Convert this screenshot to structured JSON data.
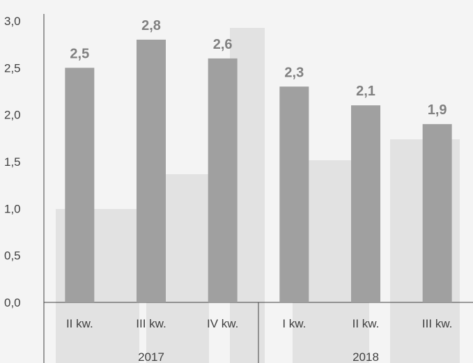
{
  "chart_data": {
    "type": "bar",
    "categories": [
      "II kw.",
      "III kw.",
      "IV kw.",
      "I kw.",
      "II kw.",
      "III kw."
    ],
    "groups": [
      {
        "label": "2017",
        "count": 3
      },
      {
        "label": "2018",
        "count": 3
      }
    ],
    "values": [
      2.5,
      2.8,
      2.6,
      2.3,
      2.1,
      1.9
    ],
    "data_labels": [
      "2,5",
      "2,8",
      "2,6",
      "2,3",
      "2,1",
      "1,9"
    ],
    "ylim": [
      0,
      3
    ],
    "yticks": [
      0,
      0.5,
      1,
      1.5,
      2,
      2.5,
      3
    ],
    "ytick_labels": [
      "0,0",
      "0,5",
      "1,0",
      "1,5",
      "2,0",
      "2,5",
      "3,0"
    ],
    "grid": false,
    "bar_color": "#a0a0a0",
    "label_color": "#808080"
  }
}
